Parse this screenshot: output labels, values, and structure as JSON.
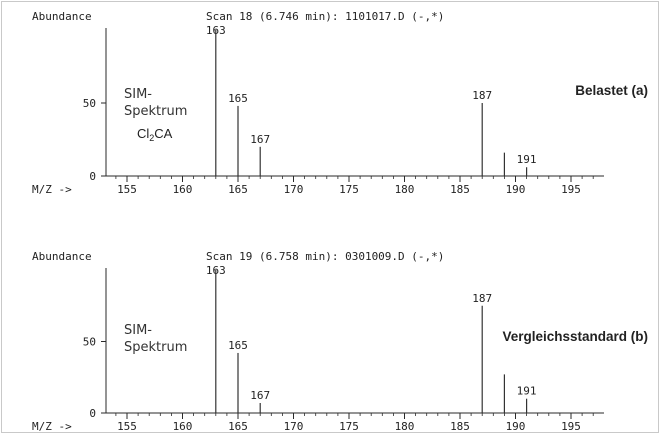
{
  "colors": {
    "accent": "#2b4f9a",
    "axis": "#2a2a2a",
    "peak": "#333333",
    "frame": "#c9c9c9"
  },
  "chart_data": [
    {
      "type": "bar",
      "ylabel": "Abundance",
      "xlabel": "M/Z  ->",
      "title": "Scan 18 (6.746 min): 1101017.D (-,*)",
      "annotation": "SIM-",
      "annotation2": "Spektrum",
      "compound": "Cl",
      "compound_sub": "2",
      "compound_tail": "CA",
      "panel_label": "Belastet",
      "panel_tag": "(a)",
      "xlim": [
        151,
        205
      ],
      "ylim": [
        0,
        100
      ],
      "x_ticks": [
        155,
        160,
        165,
        170,
        175,
        180,
        185,
        190,
        195
      ],
      "y_ticks": [
        0,
        50
      ],
      "x": [
        163,
        165,
        167,
        187,
        189,
        191
      ],
      "values": [
        100,
        48,
        20,
        50,
        16,
        6
      ],
      "peak_labels": [
        {
          "x": 163,
          "text": "163"
        },
        {
          "x": 165,
          "text": "165"
        },
        {
          "x": 167,
          "text": "167"
        },
        {
          "x": 187,
          "text": "187"
        },
        {
          "x": 191,
          "text": "191"
        }
      ]
    },
    {
      "type": "bar",
      "ylabel": "Abundance",
      "xlabel": "M/Z  ->",
      "title": "Scan 19 (6.758 min): 0301009.D (-,*)",
      "annotation": "SIM-",
      "annotation2": "Spektrum",
      "compound": "",
      "compound_sub": "",
      "compound_tail": "",
      "panel_label": "Vergleichsstandard",
      "panel_tag": "(b)",
      "xlim": [
        151,
        205
      ],
      "ylim": [
        0,
        100
      ],
      "x_ticks": [
        155,
        160,
        165,
        170,
        175,
        180,
        185,
        190,
        195
      ],
      "y_ticks": [
        0,
        50
      ],
      "x": [
        163,
        165,
        167,
        187,
        189,
        191
      ],
      "values": [
        100,
        42,
        7,
        75,
        27,
        10
      ],
      "peak_labels": [
        {
          "x": 163,
          "text": "163"
        },
        {
          "x": 165,
          "text": "165"
        },
        {
          "x": 167,
          "text": "167"
        },
        {
          "x": 187,
          "text": "187"
        },
        {
          "x": 191,
          "text": "191"
        }
      ]
    }
  ]
}
